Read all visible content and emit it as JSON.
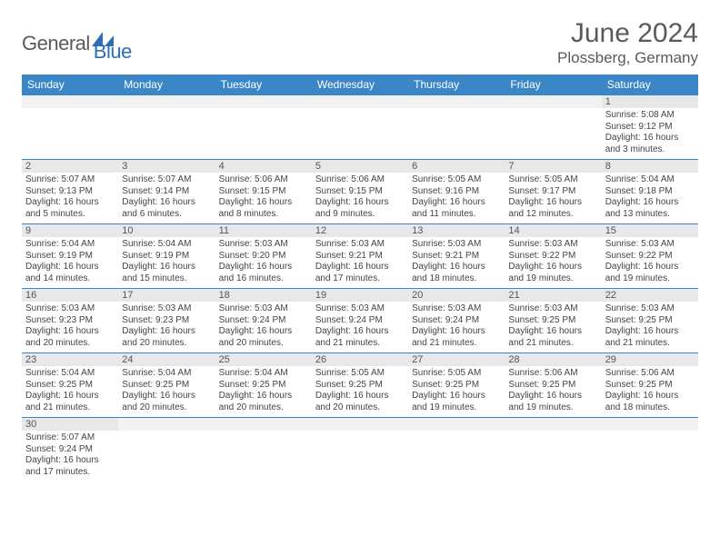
{
  "brand": {
    "general": "General",
    "blue": "Blue"
  },
  "title": "June 2024",
  "location": "Plossberg, Germany",
  "colors": {
    "header_bg": "#3b86c7",
    "header_text": "#ffffff",
    "daynum_bg": "#e8e8e8",
    "border": "#3b86c7",
    "text": "#444444",
    "brand_gray": "#5a5a5a",
    "brand_blue": "#2c6fb5"
  },
  "weekdays": [
    "Sunday",
    "Monday",
    "Tuesday",
    "Wednesday",
    "Thursday",
    "Friday",
    "Saturday"
  ],
  "weeks": [
    {
      "nums": [
        "",
        "",
        "",
        "",
        "",
        "",
        "1"
      ],
      "cells": [
        null,
        null,
        null,
        null,
        null,
        null,
        {
          "sunrise": "Sunrise: 5:08 AM",
          "sunset": "Sunset: 9:12 PM",
          "day1": "Daylight: 16 hours",
          "day2": "and 3 minutes."
        }
      ]
    },
    {
      "nums": [
        "2",
        "3",
        "4",
        "5",
        "6",
        "7",
        "8"
      ],
      "cells": [
        {
          "sunrise": "Sunrise: 5:07 AM",
          "sunset": "Sunset: 9:13 PM",
          "day1": "Daylight: 16 hours",
          "day2": "and 5 minutes."
        },
        {
          "sunrise": "Sunrise: 5:07 AM",
          "sunset": "Sunset: 9:14 PM",
          "day1": "Daylight: 16 hours",
          "day2": "and 6 minutes."
        },
        {
          "sunrise": "Sunrise: 5:06 AM",
          "sunset": "Sunset: 9:15 PM",
          "day1": "Daylight: 16 hours",
          "day2": "and 8 minutes."
        },
        {
          "sunrise": "Sunrise: 5:06 AM",
          "sunset": "Sunset: 9:15 PM",
          "day1": "Daylight: 16 hours",
          "day2": "and 9 minutes."
        },
        {
          "sunrise": "Sunrise: 5:05 AM",
          "sunset": "Sunset: 9:16 PM",
          "day1": "Daylight: 16 hours",
          "day2": "and 11 minutes."
        },
        {
          "sunrise": "Sunrise: 5:05 AM",
          "sunset": "Sunset: 9:17 PM",
          "day1": "Daylight: 16 hours",
          "day2": "and 12 minutes."
        },
        {
          "sunrise": "Sunrise: 5:04 AM",
          "sunset": "Sunset: 9:18 PM",
          "day1": "Daylight: 16 hours",
          "day2": "and 13 minutes."
        }
      ]
    },
    {
      "nums": [
        "9",
        "10",
        "11",
        "12",
        "13",
        "14",
        "15"
      ],
      "cells": [
        {
          "sunrise": "Sunrise: 5:04 AM",
          "sunset": "Sunset: 9:19 PM",
          "day1": "Daylight: 16 hours",
          "day2": "and 14 minutes."
        },
        {
          "sunrise": "Sunrise: 5:04 AM",
          "sunset": "Sunset: 9:19 PM",
          "day1": "Daylight: 16 hours",
          "day2": "and 15 minutes."
        },
        {
          "sunrise": "Sunrise: 5:03 AM",
          "sunset": "Sunset: 9:20 PM",
          "day1": "Daylight: 16 hours",
          "day2": "and 16 minutes."
        },
        {
          "sunrise": "Sunrise: 5:03 AM",
          "sunset": "Sunset: 9:21 PM",
          "day1": "Daylight: 16 hours",
          "day2": "and 17 minutes."
        },
        {
          "sunrise": "Sunrise: 5:03 AM",
          "sunset": "Sunset: 9:21 PM",
          "day1": "Daylight: 16 hours",
          "day2": "and 18 minutes."
        },
        {
          "sunrise": "Sunrise: 5:03 AM",
          "sunset": "Sunset: 9:22 PM",
          "day1": "Daylight: 16 hours",
          "day2": "and 19 minutes."
        },
        {
          "sunrise": "Sunrise: 5:03 AM",
          "sunset": "Sunset: 9:22 PM",
          "day1": "Daylight: 16 hours",
          "day2": "and 19 minutes."
        }
      ]
    },
    {
      "nums": [
        "16",
        "17",
        "18",
        "19",
        "20",
        "21",
        "22"
      ],
      "cells": [
        {
          "sunrise": "Sunrise: 5:03 AM",
          "sunset": "Sunset: 9:23 PM",
          "day1": "Daylight: 16 hours",
          "day2": "and 20 minutes."
        },
        {
          "sunrise": "Sunrise: 5:03 AM",
          "sunset": "Sunset: 9:23 PM",
          "day1": "Daylight: 16 hours",
          "day2": "and 20 minutes."
        },
        {
          "sunrise": "Sunrise: 5:03 AM",
          "sunset": "Sunset: 9:24 PM",
          "day1": "Daylight: 16 hours",
          "day2": "and 20 minutes."
        },
        {
          "sunrise": "Sunrise: 5:03 AM",
          "sunset": "Sunset: 9:24 PM",
          "day1": "Daylight: 16 hours",
          "day2": "and 21 minutes."
        },
        {
          "sunrise": "Sunrise: 5:03 AM",
          "sunset": "Sunset: 9:24 PM",
          "day1": "Daylight: 16 hours",
          "day2": "and 21 minutes."
        },
        {
          "sunrise": "Sunrise: 5:03 AM",
          "sunset": "Sunset: 9:25 PM",
          "day1": "Daylight: 16 hours",
          "day2": "and 21 minutes."
        },
        {
          "sunrise": "Sunrise: 5:03 AM",
          "sunset": "Sunset: 9:25 PM",
          "day1": "Daylight: 16 hours",
          "day2": "and 21 minutes."
        }
      ]
    },
    {
      "nums": [
        "23",
        "24",
        "25",
        "26",
        "27",
        "28",
        "29"
      ],
      "cells": [
        {
          "sunrise": "Sunrise: 5:04 AM",
          "sunset": "Sunset: 9:25 PM",
          "day1": "Daylight: 16 hours",
          "day2": "and 21 minutes."
        },
        {
          "sunrise": "Sunrise: 5:04 AM",
          "sunset": "Sunset: 9:25 PM",
          "day1": "Daylight: 16 hours",
          "day2": "and 20 minutes."
        },
        {
          "sunrise": "Sunrise: 5:04 AM",
          "sunset": "Sunset: 9:25 PM",
          "day1": "Daylight: 16 hours",
          "day2": "and 20 minutes."
        },
        {
          "sunrise": "Sunrise: 5:05 AM",
          "sunset": "Sunset: 9:25 PM",
          "day1": "Daylight: 16 hours",
          "day2": "and 20 minutes."
        },
        {
          "sunrise": "Sunrise: 5:05 AM",
          "sunset": "Sunset: 9:25 PM",
          "day1": "Daylight: 16 hours",
          "day2": "and 19 minutes."
        },
        {
          "sunrise": "Sunrise: 5:06 AM",
          "sunset": "Sunset: 9:25 PM",
          "day1": "Daylight: 16 hours",
          "day2": "and 19 minutes."
        },
        {
          "sunrise": "Sunrise: 5:06 AM",
          "sunset": "Sunset: 9:25 PM",
          "day1": "Daylight: 16 hours",
          "day2": "and 18 minutes."
        }
      ]
    },
    {
      "nums": [
        "30",
        "",
        "",
        "",
        "",
        "",
        ""
      ],
      "cells": [
        {
          "sunrise": "Sunrise: 5:07 AM",
          "sunset": "Sunset: 9:24 PM",
          "day1": "Daylight: 16 hours",
          "day2": "and 17 minutes."
        },
        null,
        null,
        null,
        null,
        null,
        null
      ]
    }
  ]
}
